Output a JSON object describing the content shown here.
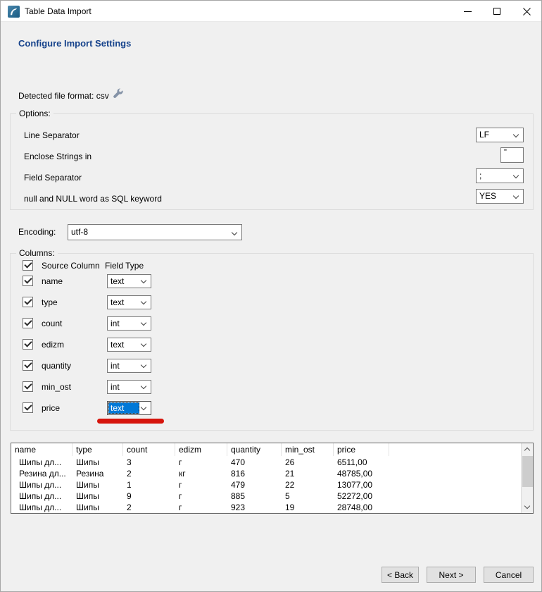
{
  "window": {
    "title": "Table Data Import"
  },
  "page": {
    "heading": "Configure Import Settings",
    "detected_format": "Detected file format: csv"
  },
  "options": {
    "legend": "Options:",
    "rows": [
      {
        "label": "Line Separator",
        "control": "select",
        "value": "LF"
      },
      {
        "label": "Enclose Strings in",
        "control": "input",
        "value": "\""
      },
      {
        "label": "Field Separator",
        "control": "select",
        "value": ";"
      },
      {
        "label": "null and NULL word as SQL keyword",
        "control": "select",
        "value": "YES"
      }
    ]
  },
  "encoding": {
    "label": "Encoding:",
    "value": "utf-8"
  },
  "columns": {
    "legend": "Columns:",
    "header": {
      "source": "Source Column",
      "field_type": "Field Type"
    },
    "rows": [
      {
        "name": "name",
        "field_type": "text",
        "checked": true,
        "selected": false
      },
      {
        "name": "type",
        "field_type": "text",
        "checked": true,
        "selected": false
      },
      {
        "name": "count",
        "field_type": "int",
        "checked": true,
        "selected": false
      },
      {
        "name": "edizm",
        "field_type": "text",
        "checked": true,
        "selected": false
      },
      {
        "name": "quantity",
        "field_type": "int",
        "checked": true,
        "selected": false
      },
      {
        "name": "min_ost",
        "field_type": "int",
        "checked": true,
        "selected": false
      },
      {
        "name": "price",
        "field_type": "text",
        "checked": true,
        "selected": true
      }
    ]
  },
  "preview": {
    "headers": [
      "name",
      "type",
      "count",
      "edizm",
      "quantity",
      "min_ost",
      "price"
    ],
    "rows": [
      [
        "Шипы дл...",
        "Шипы",
        "3",
        "г",
        "470",
        "26",
        "6511,00"
      ],
      [
        "Резина дл...",
        "Резина",
        "2",
        "кг",
        "816",
        "21",
        "48785,00"
      ],
      [
        "Шипы дл...",
        "Шипы",
        "1",
        "г",
        "479",
        "22",
        "13077,00"
      ],
      [
        "Шипы дл...",
        "Шипы",
        "9",
        "г",
        "885",
        "5",
        "52272,00"
      ],
      [
        "Шипы дл...",
        "Шипы",
        "2",
        "г",
        "923",
        "19",
        "28748,00"
      ]
    ]
  },
  "footer": {
    "back": "< Back",
    "next": "Next >",
    "cancel": "Cancel"
  },
  "icons": {
    "app": "mysql-workbench-dolphin-icon",
    "format": "wrench-icon"
  },
  "colors": {
    "heading": "#15428b",
    "selection": "#0078d7",
    "annotation_red": "#d6150c",
    "titlebar_bg": "#ffffff",
    "dialog_bg": "#f0f0f0"
  }
}
